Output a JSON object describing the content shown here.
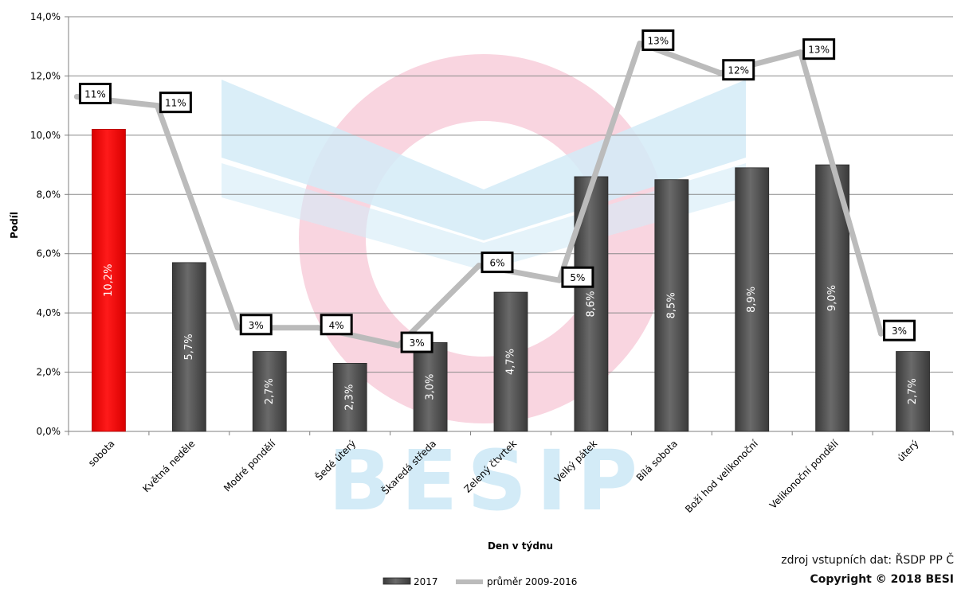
{
  "chart_data": {
    "type": "bar+line",
    "xlabel": "Den v týdnu",
    "ylabel": "Podíl",
    "ylim": [
      0,
      14
    ],
    "yticks": [
      "0,0%",
      "2,0%",
      "4,0%",
      "6,0%",
      "8,0%",
      "10,0%",
      "12,0%",
      "14,0%"
    ],
    "grid": true,
    "legend_position": "bottom",
    "categories": [
      "sobota",
      "Květná neděle",
      "Modré pondělí",
      "Šedé úterý",
      "Škaredá středa",
      "Zelený čtvrtek",
      "Velký pátek",
      "Bílá sobota",
      "Boží hod velikonoční",
      "Velikonoční pondělí",
      "úterý"
    ],
    "series": [
      {
        "name": "2017",
        "type": "bar",
        "values": [
          10.2,
          5.7,
          2.7,
          2.3,
          3.0,
          4.7,
          8.6,
          8.5,
          8.9,
          9.0,
          2.7
        ],
        "labels": [
          "10,2%",
          "5,7%",
          "2,7%",
          "2,3%",
          "3,0%",
          "4,7%",
          "8,6%",
          "8,5%",
          "8,9%",
          "9,0%",
          "2,7%"
        ],
        "color": "#555555",
        "highlight_color": "#ff0000",
        "highlight_index": 0
      },
      {
        "name": "průměr 2009-2016",
        "type": "line",
        "values": [
          11.3,
          11.0,
          3.5,
          3.5,
          2.9,
          5.6,
          5.1,
          13.1,
          12.1,
          12.8,
          3.3
        ],
        "labels": [
          "11%",
          "11%",
          "3%",
          "4%",
          "3%",
          "6%",
          "5%",
          "13%",
          "12%",
          "13%",
          "3%"
        ],
        "color": "#bbbbbb"
      }
    ]
  },
  "footer": {
    "source": "zdroj vstupních dat: ŘSDP PP Č",
    "copyright": "Copyright © 2018 BESI"
  },
  "watermark": {
    "text": "BESIP",
    "colors": {
      "ring": "#f9d5e0",
      "chevron": "#d3ebf7",
      "letters": "#d3ebf7"
    }
  }
}
